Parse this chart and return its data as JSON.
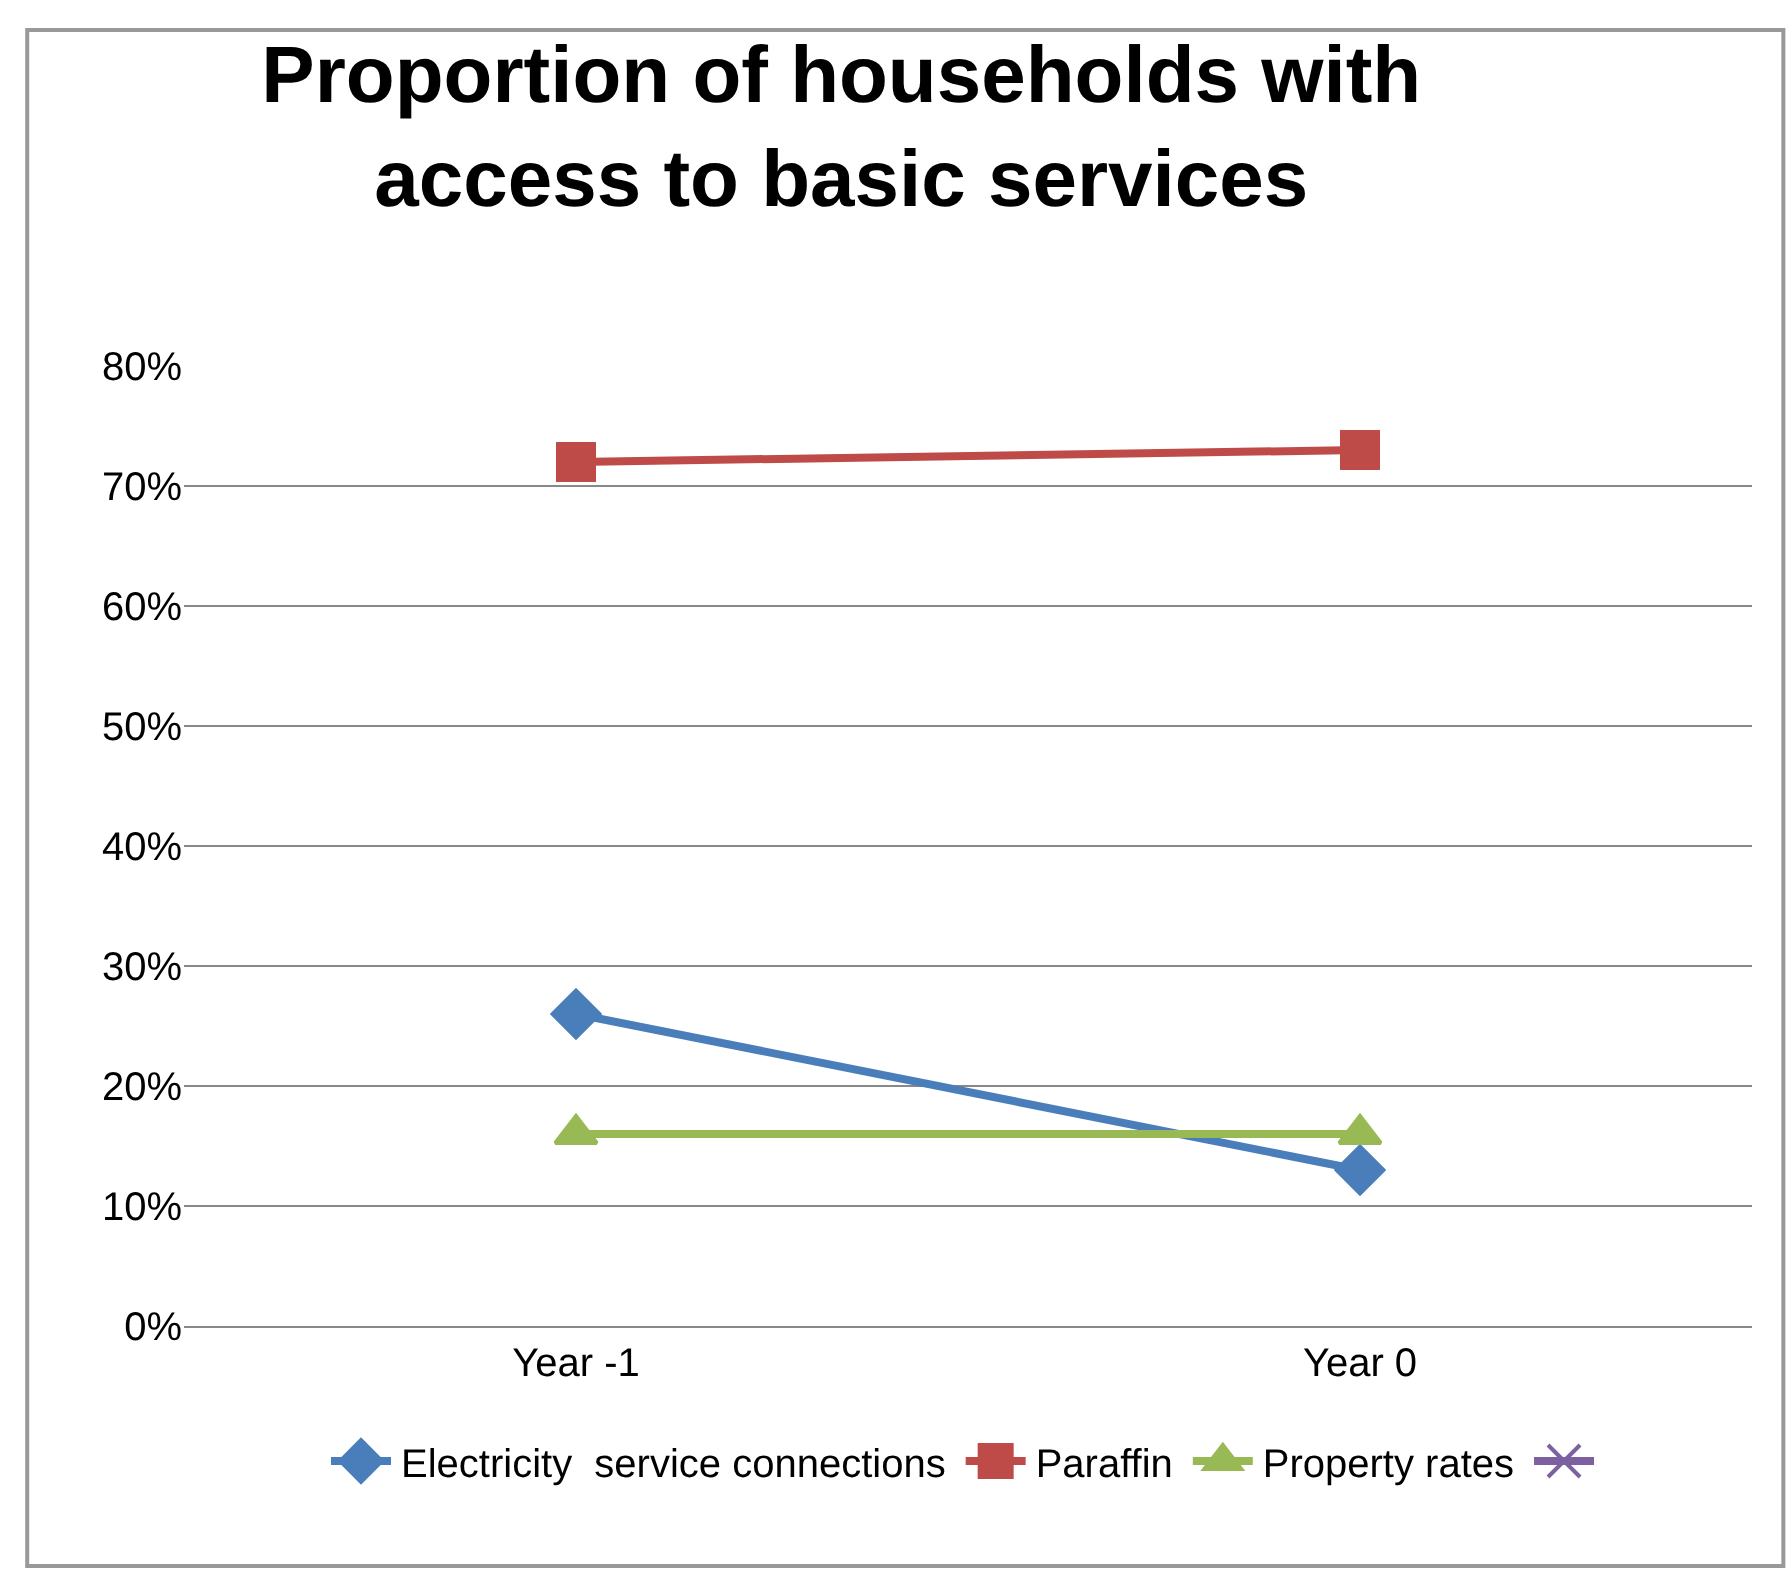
{
  "chart_data": {
    "type": "line",
    "title": "Proportion of households with\naccess to basic services",
    "categories": [
      "Year -1",
      "Year 0"
    ],
    "series": [
      {
        "name": "Electricity  service connections",
        "color": "#4a7ebb",
        "marker": "diamond",
        "values": [
          26,
          13
        ]
      },
      {
        "name": "Paraffin",
        "color": "#be4b48",
        "marker": "square",
        "values": [
          72,
          73
        ]
      },
      {
        "name": "Property rates",
        "color": "#98b954",
        "marker": "triangle",
        "values": [
          16,
          16
        ]
      },
      {
        "color": "#7d60a0",
        "marker": "cross",
        "values": [
          null,
          null
        ]
      }
    ],
    "ylim": [
      0,
      80
    ],
    "yticks": [
      {
        "value": 0,
        "label": "0%"
      },
      {
        "value": 10,
        "label": "10%"
      },
      {
        "value": 20,
        "label": "20%"
      },
      {
        "value": 30,
        "label": "30%"
      },
      {
        "value": 40,
        "label": "40%"
      },
      {
        "value": 50,
        "label": "50%"
      },
      {
        "value": 60,
        "label": "60%"
      },
      {
        "value": 70,
        "label": "70%"
      },
      {
        "value": 80,
        "label": "80%"
      }
    ],
    "grid": "y",
    "legend": "bottom",
    "line_style": "solid"
  }
}
